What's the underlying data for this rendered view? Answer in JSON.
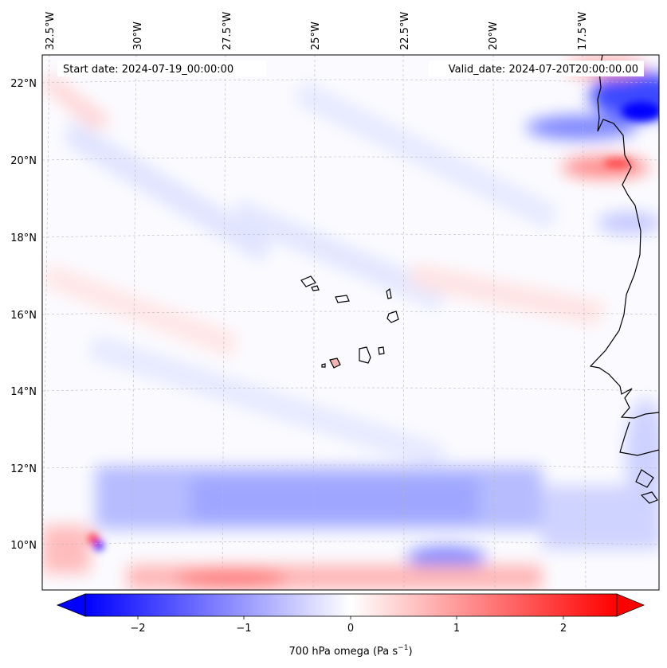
{
  "header": {
    "start_date": "Start date: 2024-07-19_00:00:00",
    "valid_date": "Valid_date: 2024-07-20T20:00:00.00"
  },
  "longitude_labels": [
    "32.5°W",
    "30°W",
    "27.5°W",
    "25°W",
    "22.5°W",
    "20°W",
    "17.5°W"
  ],
  "latitude_labels": [
    "22°N",
    "20°N",
    "18°N",
    "16°N",
    "14°N",
    "12°N",
    "10°N"
  ],
  "colorbar": {
    "ticks": [
      "−2",
      "−1",
      "0",
      "1",
      "2"
    ],
    "label_main": "700 hPa omega (Pa s",
    "label_sup": "−1",
    "label_end": ")",
    "vmin": -2.7,
    "vmax": 2.7,
    "colors": {
      "negative": "#0000ff",
      "zero": "#ffffff",
      "positive": "#ff0000"
    }
  },
  "chart_data": {
    "type": "heatmap",
    "variable": "700 hPa omega",
    "units": "Pa s^-1",
    "lon_range": [
      -33,
      -15.5
    ],
    "lat_range": [
      9,
      22.8
    ],
    "title_left": "Start date: 2024-07-19_00:00:00",
    "title_right": "Valid_date: 2024-07-20T20:00:00.00"
  }
}
